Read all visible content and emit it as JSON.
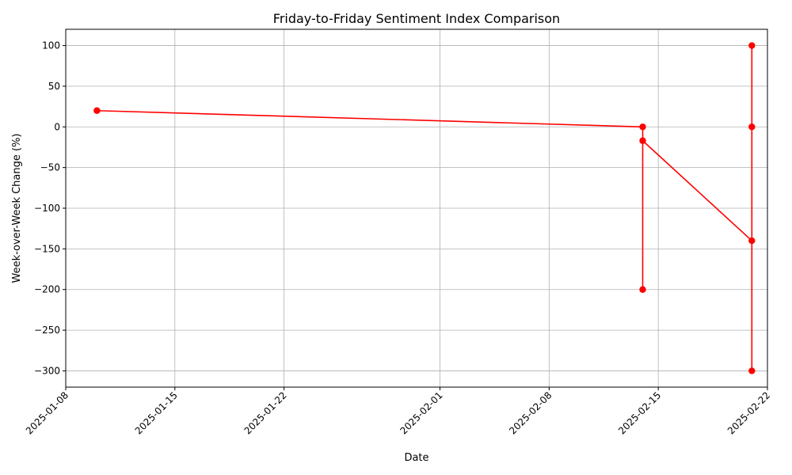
{
  "chart_data": {
    "type": "line",
    "title": "Friday-to-Friday Sentiment Index Comparison",
    "xlabel": "Date",
    "ylabel": "Week-over-Week Change (%)",
    "x_type": "date",
    "xlim": [
      "2025-01-08",
      "2025-02-22"
    ],
    "ylim": [
      -320,
      120
    ],
    "x_ticks": [
      "2025-01-08",
      "2025-01-15",
      "2025-01-22",
      "2025-02-01",
      "2025-02-08",
      "2025-02-15",
      "2025-02-22"
    ],
    "y_ticks": [
      100,
      50,
      0,
      -50,
      -100,
      -150,
      -200,
      -250,
      -300
    ],
    "grid": true,
    "legend": false,
    "series": [
      {
        "color": "#ff0000",
        "marker": "circle",
        "points": [
          {
            "x": "2025-01-10",
            "y": 20
          },
          {
            "x": "2025-02-14",
            "y": 0
          },
          {
            "x": "2025-02-14",
            "y": -200
          },
          {
            "x": "2025-02-14",
            "y": -17
          },
          {
            "x": "2025-02-21",
            "y": -140
          },
          {
            "x": "2025-02-21",
            "y": -300
          },
          {
            "x": "2025-02-21",
            "y": 0
          },
          {
            "x": "2025-02-21",
            "y": 100
          }
        ]
      }
    ]
  }
}
